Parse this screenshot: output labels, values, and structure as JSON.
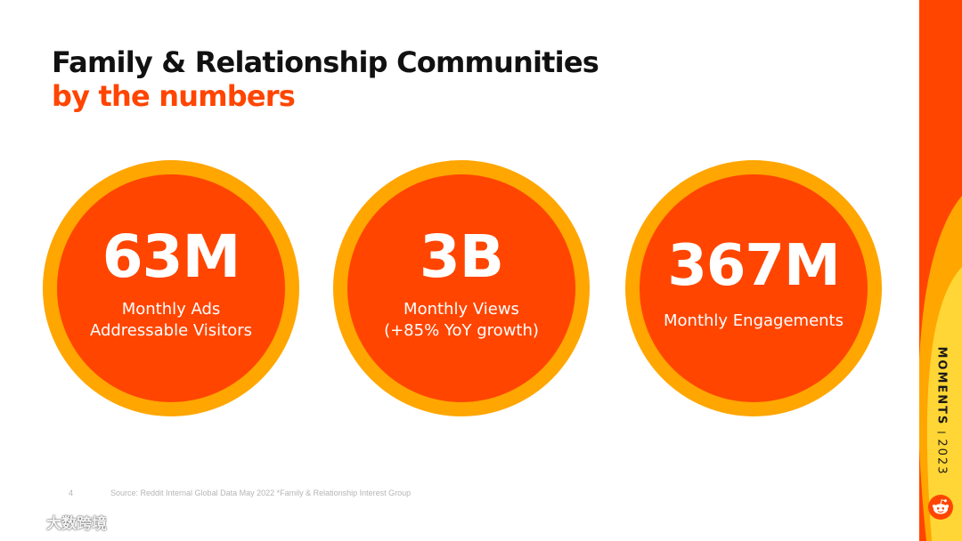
{
  "slide": {
    "title_line1": "Family & Relationship Communities",
    "title_line2": "by the numbers",
    "accent_color": "#FF4500",
    "ring_color": "#FFA600"
  },
  "stats": [
    {
      "value": "63M",
      "label_line1": "Monthly Ads",
      "label_line2": "Addressable Visitors"
    },
    {
      "value": "3B",
      "label_line1": "Monthly Views",
      "label_line2": "(+85% YoY growth)"
    },
    {
      "value": "367M",
      "label_line1": "Monthly Engagements",
      "label_line2": ""
    }
  ],
  "footer": {
    "page_number": "4",
    "source": "Source: Reddit Internal Global Data May 2022 *Family & Relationship Interest Group"
  },
  "side_badge": {
    "moments": "MOMENTS",
    "year": "2023",
    "logo_icon": "reddit-snoo-icon"
  },
  "watermark": {
    "text": "大数跨境",
    "icon": "logo-mark-icon"
  }
}
